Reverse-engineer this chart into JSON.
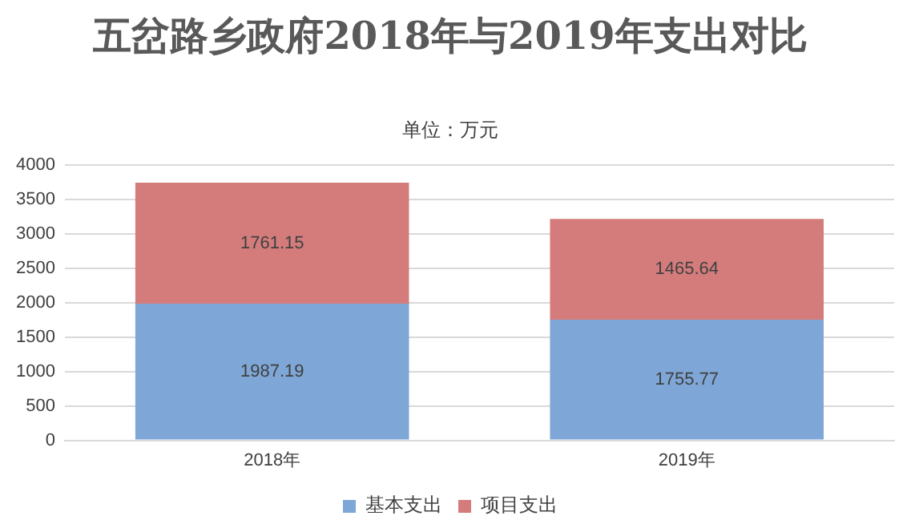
{
  "chart_data": {
    "type": "bar",
    "title": "五岔路乡政府2018年与2019年支出对比",
    "subtitle": "单位：万元",
    "categories": [
      "2018年",
      "2019年"
    ],
    "stacked": true,
    "series": [
      {
        "name": "基本支出",
        "color": "#7ea6d6",
        "values": [
          1987.19,
          1755.77
        ]
      },
      {
        "name": "项目支出",
        "color": "#d47c7c",
        "values": [
          1761.15,
          1465.64
        ]
      }
    ],
    "ylim": [
      0,
      4000
    ],
    "yticks": [
      0,
      500,
      1000,
      1500,
      2000,
      2500,
      3000,
      3500,
      4000
    ],
    "grid": "y",
    "legend": "bottom",
    "data_labels": true
  }
}
